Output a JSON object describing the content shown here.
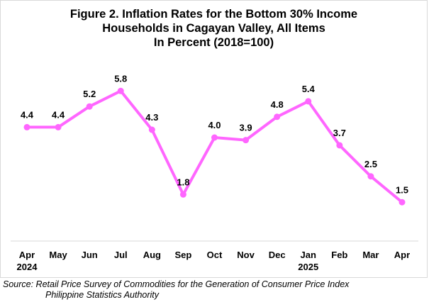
{
  "chart_data": {
    "type": "line",
    "title_lines": [
      "Figure 2. Inflation Rates for the Bottom 30% Income",
      "Households in Cagayan Valley, All Items",
      "In Percent (2018=100)"
    ],
    "categories": [
      "Apr",
      "May",
      "Jun",
      "Jul",
      "Aug",
      "Sep",
      "Oct",
      "Nov",
      "Dec",
      "Jan",
      "Feb",
      "Mar",
      "Apr"
    ],
    "year_labels": [
      "2024",
      "",
      "",
      "",
      "",
      "",
      "",
      "",
      "",
      "2025",
      "",
      "",
      ""
    ],
    "series": [
      {
        "values": [
          4.4,
          4.4,
          5.2,
          5.8,
          4.3,
          1.8,
          4.0,
          3.9,
          4.8,
          5.4,
          3.7,
          2.5,
          1.5
        ],
        "labels": [
          "4.4",
          "4.4",
          "5.2",
          "5.8",
          "4.3",
          "1.8",
          "4.0",
          "3.9",
          "4.8",
          "5.4",
          "3.7",
          "2.5",
          "1.5"
        ]
      }
    ],
    "ylim": [
      0,
      7
    ],
    "grid": false,
    "legend": "none",
    "line_color": "#ff66ff",
    "axis_color": "#d9d9d9"
  },
  "source": {
    "line1": "Source: Retail Price Survey of Commodities for the Generation of Consumer Price Index",
    "line2": "Philippine Statistics Authority"
  }
}
